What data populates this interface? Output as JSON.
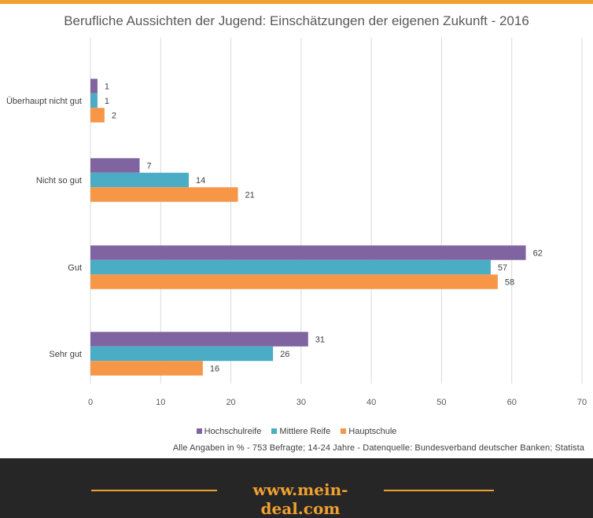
{
  "chart_data": {
    "type": "bar",
    "orientation": "horizontal",
    "title": "Berufliche Aussichten der Jugend: Einschätzungen der eigenen Zukunft - 2016",
    "categories": [
      "Überhaupt nicht gut",
      "Nicht so gut",
      "Gut",
      "Sehr gut"
    ],
    "series": [
      {
        "name": "Hochschulreife",
        "color": "#8064a2",
        "values": [
          1,
          7,
          62,
          31
        ]
      },
      {
        "name": "Mittlere Reife",
        "color": "#4bacc6",
        "values": [
          1,
          14,
          57,
          26
        ]
      },
      {
        "name": "Hauptschule",
        "color": "#f79646",
        "values": [
          2,
          21,
          58,
          16
        ]
      }
    ],
    "xlim": [
      0,
      70
    ],
    "x_ticks": [
      0,
      10,
      20,
      30,
      40,
      50,
      60,
      70
    ],
    "grid": true,
    "legend_position": "bottom",
    "data_labels": true
  },
  "source_note": "Alle Angaben  in % - 753 Befragte; 14-24 Jahre - Datenquelle: Bundesverband deutscher Banken; Statista",
  "footer": {
    "url": "www.mein-deal.com",
    "accent_color": "#f0a030",
    "background_color": "#262626"
  }
}
